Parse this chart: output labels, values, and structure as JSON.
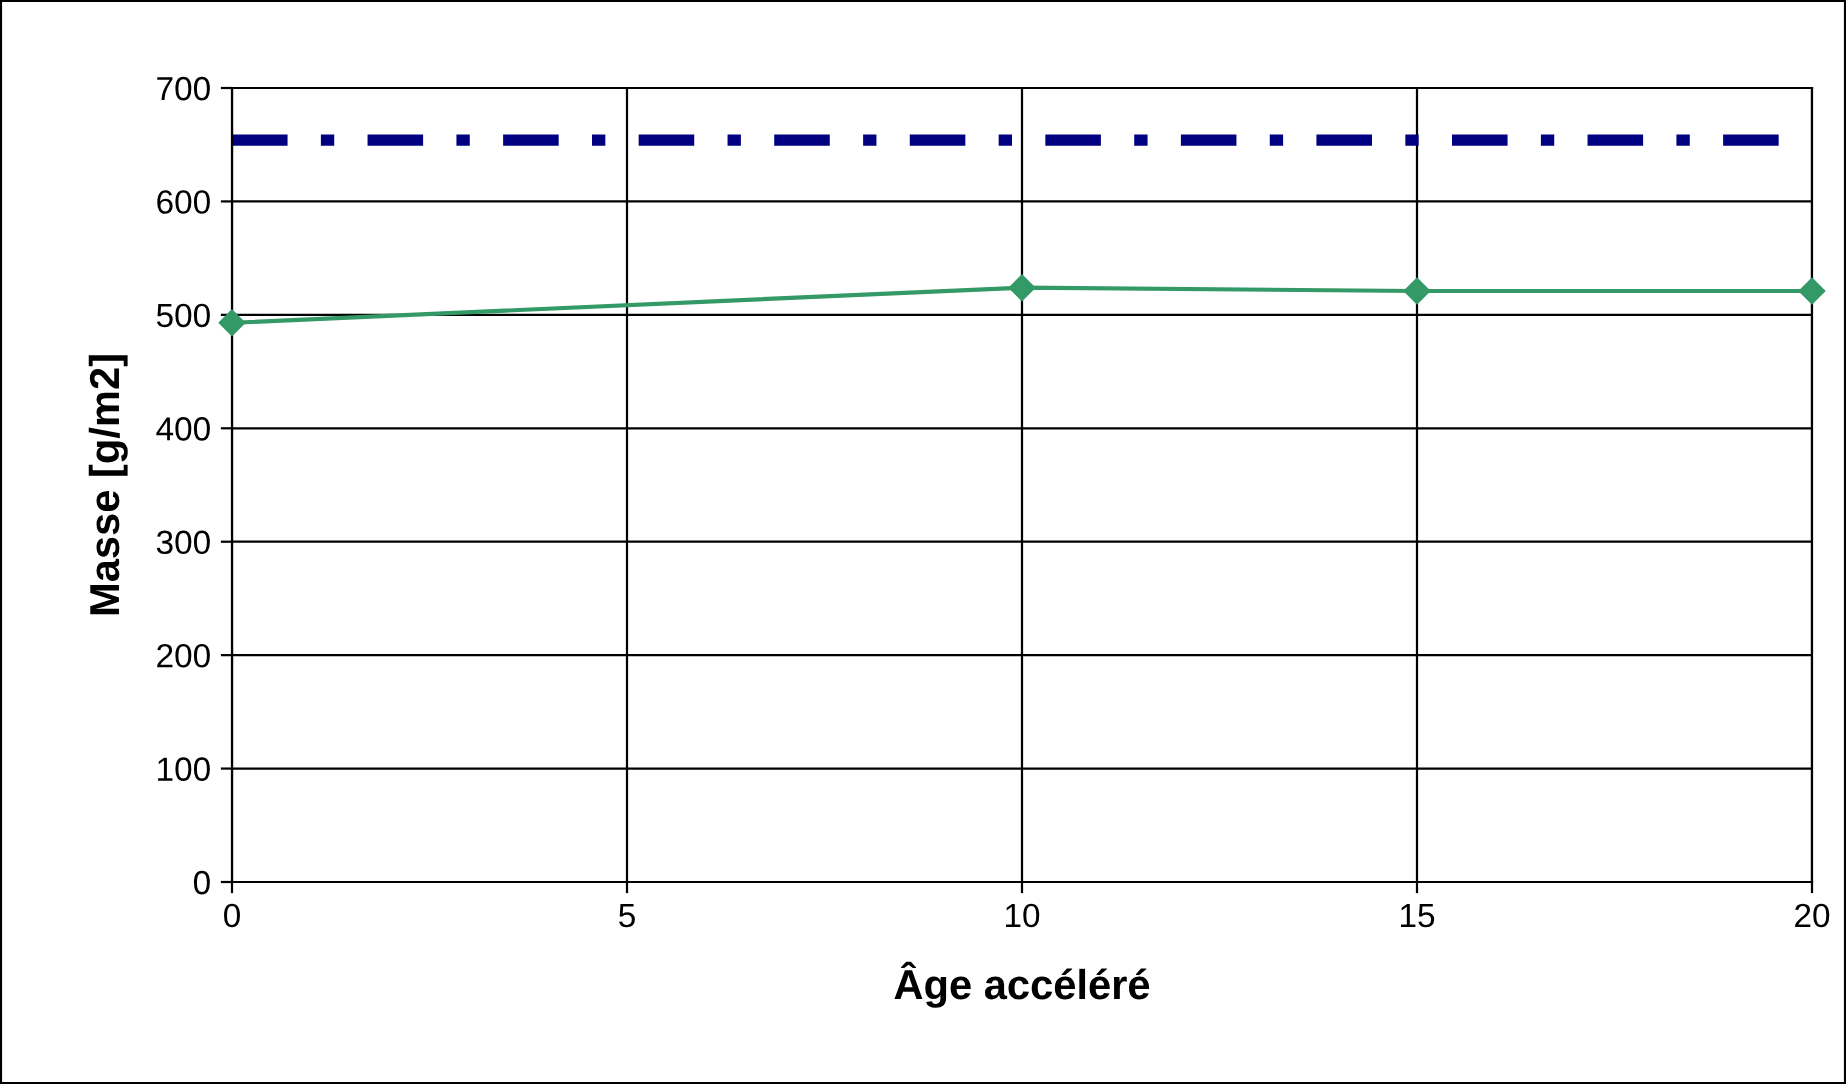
{
  "chart_data": {
    "type": "line",
    "xlabel": "Âge accéléré",
    "ylabel": "Masse [g/m2]",
    "x": [
      0,
      10,
      15,
      20
    ],
    "series": [
      {
        "color": "#339966",
        "values": [
          493,
          524,
          521,
          521
        ]
      }
    ],
    "ref_lines": [
      {
        "axis": "y",
        "value": 654,
        "color": "#000080",
        "line_style": "dashed"
      }
    ],
    "xlim": [
      0,
      20
    ],
    "xticks": [
      0,
      5,
      10,
      15,
      20
    ],
    "ylim": [
      0,
      700
    ],
    "yticks": [
      0,
      100,
      200,
      300,
      400,
      500,
      600,
      700
    ],
    "grid": true,
    "marker": "diamond",
    "line_style": "solid"
  }
}
